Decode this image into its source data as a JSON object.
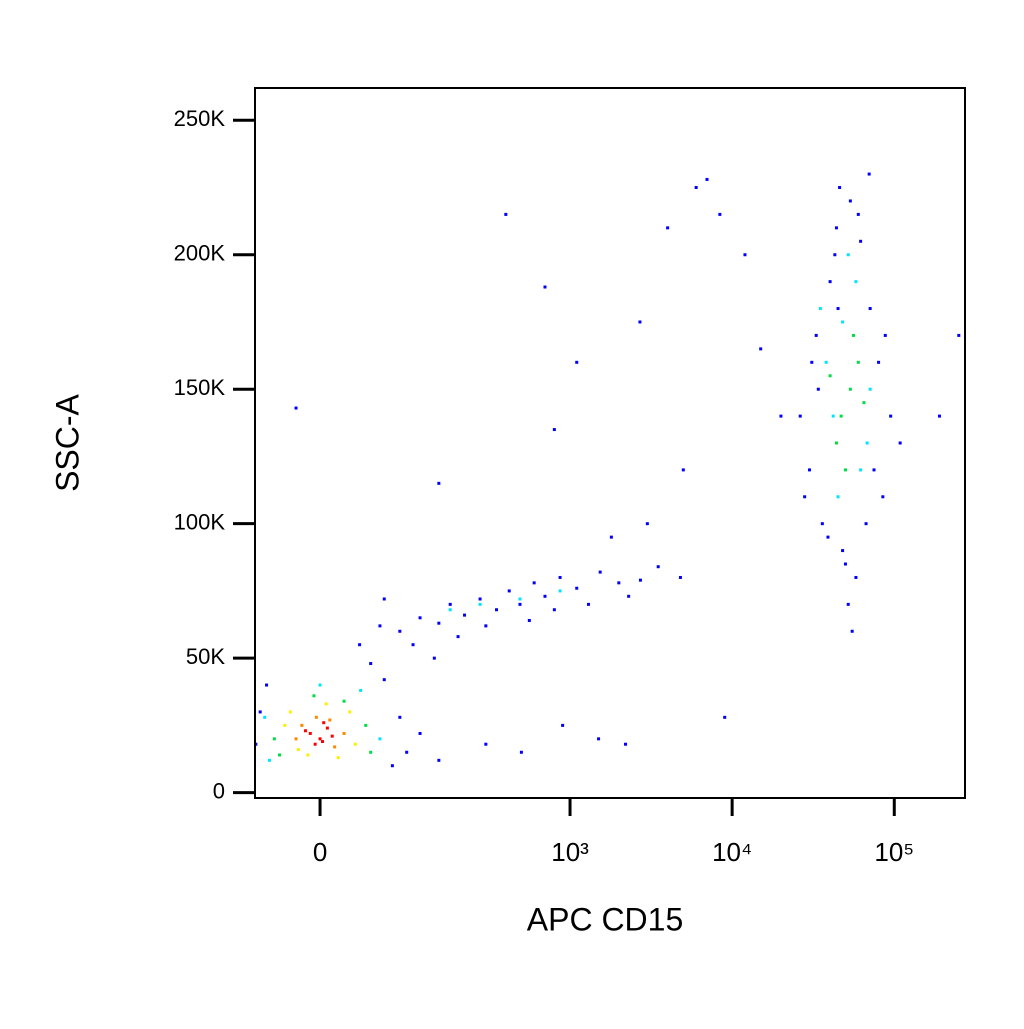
{
  "chart_data": {
    "type": "scatter",
    "xlabel": "APC CD15",
    "ylabel": "SSC-A",
    "xscale": "asinh",
    "xlim": [
      -61,
      273000
    ],
    "ylim": [
      -2000,
      262000
    ],
    "xticks": [
      0,
      {
        "value": 1000,
        "label": "10³"
      },
      {
        "value": 10000,
        "label": "10⁴"
      },
      {
        "value": 100000,
        "label": "10⁵"
      }
    ],
    "yticks": [
      0,
      {
        "value": 50000,
        "label": "50K"
      },
      {
        "value": 100000,
        "label": "100K"
      },
      {
        "value": 150000,
        "label": "150K"
      },
      {
        "value": 200000,
        "label": "200K"
      },
      {
        "value": 250000,
        "label": "250K"
      }
    ],
    "series": [
      {
        "color": "#0000ff",
        "x": [
          -55,
          70,
          -60,
          80,
          -48,
          60,
          90,
          112,
          34,
          55,
          80,
          112,
          150,
          178,
          220,
          276,
          350,
          420,
          490,
          600,
          700,
          868,
          1100,
          1535,
          2000,
          2720,
          3500,
          4800,
          45,
          100,
          200,
          300,
          560,
          800,
          1300,
          2300,
          60,
          140,
          150,
          300,
          500,
          900,
          1500,
          2200,
          26300,
          30000,
          33000,
          36000,
          40200,
          44000,
          48000,
          53600,
          58000,
          62000,
          71000,
          80000,
          95000,
          108700,
          28000,
          34000,
          39000,
          46000,
          52000,
          60000,
          67000,
          75000,
          88000,
          31000,
          43000,
          55000,
          70000,
          85000,
          50000,
          45000,
          -20,
          150,
          400,
          700,
          1100,
          2700,
          4000,
          6000,
          8400,
          12000,
          15000,
          20000,
          3000,
          9000,
          190000,
          250000,
          5000,
          1800,
          800,
          7000
        ],
        "y": [
          30000,
          10000,
          18000,
          28000,
          40000,
          42000,
          15000,
          22000,
          55000,
          62000,
          60000,
          65000,
          63000,
          70000,
          66000,
          72000,
          68000,
          75000,
          70000,
          78000,
          73000,
          80000,
          76000,
          82000,
          78000,
          79000,
          84000,
          80000,
          48000,
          55000,
          58000,
          62000,
          64000,
          68000,
          70000,
          73000,
          72000,
          50000,
          12000,
          18000,
          15000,
          25000,
          20000,
          18000,
          140000,
          120000,
          170000,
          100000,
          190000,
          210000,
          90000,
          220000,
          80000,
          205000,
          180000,
          160000,
          140000,
          130000,
          110000,
          150000,
          95000,
          225000,
          70000,
          215000,
          100000,
          120000,
          170000,
          160000,
          200000,
          60000,
          230000,
          110000,
          85000,
          180000,
          143000,
          115000,
          215000,
          188000,
          160000,
          175000,
          210000,
          225000,
          215000,
          200000,
          165000,
          140000,
          100000,
          28000,
          140000,
          170000,
          120000,
          95000,
          135000,
          228000
        ]
      },
      {
        "color": "#00e5ff",
        "x": [
          -50,
          55,
          -45,
          35,
          0,
          35000,
          71000,
          45000,
          58000,
          38000,
          68000,
          52000,
          42000,
          62000,
          48000,
          178,
          490,
          868,
          276
        ],
        "y": [
          28000,
          20000,
          12000,
          38000,
          40000,
          180000,
          150000,
          110000,
          190000,
          160000,
          130000,
          200000,
          140000,
          120000,
          175000,
          68000,
          72000,
          75000,
          70000
        ]
      },
      {
        "color": "#00dd44",
        "x": [
          -40,
          40,
          -5,
          45,
          -35,
          20,
          53600,
          47000,
          60000,
          44000,
          56000,
          50000,
          65000,
          40200
        ],
        "y": [
          20000,
          25000,
          36000,
          15000,
          14000,
          34000,
          150000,
          140000,
          160000,
          130000,
          170000,
          120000,
          145000,
          155000
        ]
      },
      {
        "color": "#ffee00",
        "x": [
          -25,
          25,
          -10,
          15,
          30,
          -30,
          5,
          -18
        ],
        "y": [
          30000,
          30000,
          14000,
          13000,
          18000,
          25000,
          33000,
          16000
        ]
      },
      {
        "color": "#ff8800",
        "x": [
          -15,
          12,
          -3,
          8,
          20,
          -20
        ],
        "y": [
          25000,
          17000,
          28000,
          27000,
          22000,
          20000
        ]
      },
      {
        "color": "#ff0000",
        "x": [
          -8,
          0,
          6,
          -4,
          3,
          10,
          -12,
          2
        ],
        "y": [
          22000,
          20000,
          24000,
          18000,
          26000,
          21000,
          23000,
          19000
        ]
      }
    ]
  }
}
